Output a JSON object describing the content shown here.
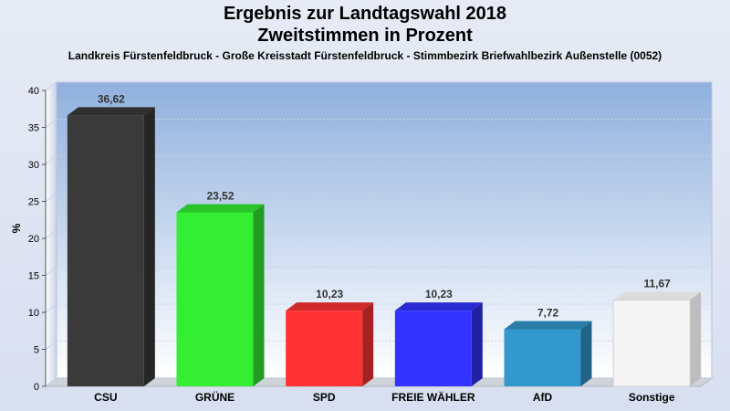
{
  "header": {
    "title_line1": "Ergebnis zur Landtagswahl 2018",
    "title_line2": "Zweitstimmen in Prozent",
    "subtitle": "Landkreis Fürstenfeldbruck - Große Kreisstadt Fürstenfeldbruck - Stimmbezirk Briefwahlbezirk Außenstelle (0052)"
  },
  "chart_data": {
    "type": "bar",
    "title": "Ergebnis zur Landtagswahl 2018 Zweitstimmen in Prozent",
    "subtitle": "Landkreis Fürstenfeldbruck - Große Kreisstadt Fürstenfeldbruck - Stimmbezirk Briefwahlbezirk Außenstelle (0052)",
    "xlabel": "",
    "ylabel": "%",
    "ylim": [
      0,
      40
    ],
    "yticks": [
      0,
      5,
      10,
      15,
      20,
      25,
      30,
      35,
      40
    ],
    "grid": true,
    "categories": [
      "CSU",
      "GRÜNE",
      "SPD",
      "FREIE WÄHLER",
      "AfD",
      "Sonstige"
    ],
    "values": [
      36.62,
      23.52,
      10.23,
      10.23,
      7.72,
      11.67
    ],
    "value_labels": [
      "36,62",
      "23,52",
      "10,23",
      "10,23",
      "7,72",
      "11,67"
    ],
    "colors": [
      "#3a3a3a",
      "#33ee33",
      "#ff3333",
      "#3333ff",
      "#3399cc",
      "#f4f4f4"
    ]
  }
}
